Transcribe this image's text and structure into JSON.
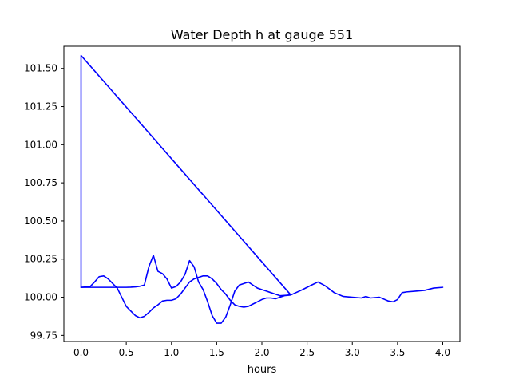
{
  "chart_data": {
    "type": "line",
    "title": "Water Depth h at gauge 551",
    "xlabel": "hours",
    "ylabel": "",
    "xlim": [
      -0.19,
      4.19
    ],
    "ylim": [
      99.71,
      101.645
    ],
    "xticks": [
      0.0,
      0.5,
      1.0,
      1.5,
      2.0,
      2.5,
      3.0,
      3.5,
      4.0
    ],
    "xtick_labels": [
      "0.0",
      "0.5",
      "1.0",
      "1.5",
      "2.0",
      "2.5",
      "3.0",
      "3.5",
      "4.0"
    ],
    "yticks": [
      99.75,
      100.0,
      100.25,
      100.5,
      100.75,
      101.0,
      101.25,
      101.5
    ],
    "ytick_labels": [
      "99.75",
      "100.00",
      "100.25",
      "100.50",
      "100.75",
      "101.00",
      "101.25",
      "101.50"
    ],
    "grid": false,
    "legend": "none",
    "color": "#0000ff",
    "series": [
      {
        "x": [
          0.0,
          0.0,
          2.32,
          2.45,
          2.55,
          2.62,
          2.7,
          2.8,
          2.9,
          3.0,
          3.1,
          3.15,
          3.2,
          3.3,
          3.4,
          3.45,
          3.5,
          3.55,
          3.6,
          3.7,
          3.8,
          3.9,
          4.0
        ],
        "y": [
          100.065,
          101.585,
          100.015,
          100.05,
          100.08,
          100.1,
          100.075,
          100.03,
          100.005,
          100.0,
          99.995,
          100.005,
          99.995,
          100.0,
          99.975,
          99.97,
          99.985,
          100.03,
          100.035,
          100.04,
          100.045,
          100.06,
          100.065
        ]
      },
      {
        "x": [
          0.0,
          0.05,
          0.1,
          0.15,
          0.2,
          0.25,
          0.3,
          0.35,
          0.4,
          0.45,
          0.5,
          0.55,
          0.6,
          0.65,
          0.7,
          0.75,
          0.8,
          0.85,
          0.9,
          0.95,
          1.0,
          1.05,
          1.1,
          1.15,
          1.2,
          1.25,
          1.3,
          1.35,
          1.4,
          1.45,
          1.5,
          1.55,
          1.6,
          1.65,
          1.7,
          1.75,
          1.8,
          1.85,
          1.9,
          1.95,
          2.0,
          2.05,
          2.1,
          2.15,
          2.2,
          2.25,
          2.32
        ],
        "y": [
          100.065,
          100.065,
          100.065,
          100.065,
          100.065,
          100.065,
          100.065,
          100.065,
          100.065,
          100.065,
          100.065,
          100.066,
          100.068,
          100.072,
          100.08,
          100.2,
          100.275,
          100.17,
          100.155,
          100.12,
          100.06,
          100.07,
          100.1,
          100.15,
          100.24,
          100.2,
          100.1,
          100.05,
          99.97,
          99.88,
          99.83,
          99.83,
          99.87,
          99.95,
          100.04,
          100.08,
          100.09,
          100.1,
          100.08,
          100.06,
          100.05,
          100.04,
          100.03,
          100.02,
          100.01,
          100.012,
          100.015
        ]
      },
      {
        "x": [
          0.0,
          0.1,
          0.15,
          0.2,
          0.25,
          0.3,
          0.35,
          0.4,
          0.45,
          0.5,
          0.55,
          0.6,
          0.65,
          0.7,
          0.75,
          0.8,
          0.85,
          0.9,
          0.95,
          1.0,
          1.05,
          1.1,
          1.15,
          1.2,
          1.25,
          1.3,
          1.35,
          1.4,
          1.45,
          1.5,
          1.55,
          1.6,
          1.65,
          1.7,
          1.75,
          1.8,
          1.85,
          1.9,
          1.95,
          2.0,
          2.05,
          2.1,
          2.15,
          2.2,
          2.25,
          2.32
        ],
        "y": [
          100.065,
          100.07,
          100.1,
          100.135,
          100.14,
          100.12,
          100.09,
          100.06,
          100.0,
          99.94,
          99.91,
          99.88,
          99.865,
          99.875,
          99.9,
          99.93,
          99.95,
          99.975,
          99.98,
          99.98,
          99.99,
          100.02,
          100.06,
          100.1,
          100.12,
          100.13,
          100.14,
          100.14,
          100.12,
          100.09,
          100.05,
          100.02,
          99.98,
          99.95,
          99.94,
          99.935,
          99.94,
          99.955,
          99.97,
          99.985,
          99.995,
          99.995,
          99.99,
          100.0,
          100.01,
          100.015
        ]
      }
    ]
  }
}
